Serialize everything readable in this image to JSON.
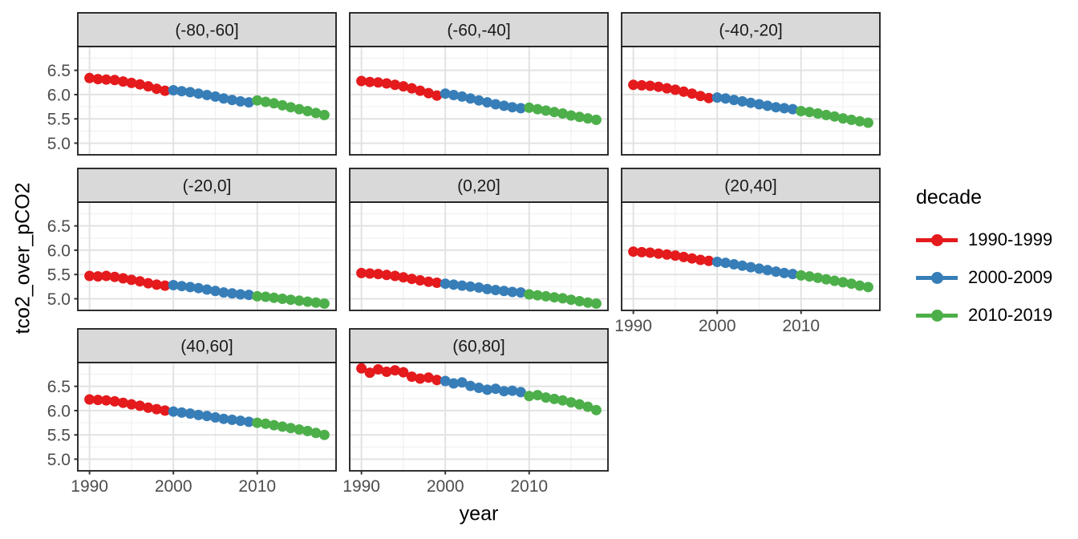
{
  "chart_data": {
    "type": "scatter",
    "title": "",
    "xlabel": "year",
    "ylabel": "tco2_over_pCO2",
    "legend_title": "decade",
    "legend_position": "right",
    "grid": true,
    "facet_ncol": 3,
    "xlim": [
      1988.6,
      2019.4
    ],
    "ylim": [
      4.76,
      6.99
    ],
    "x_ticks": [
      1990,
      2000,
      2010
    ],
    "x_minor_ticks": [
      1995,
      2005,
      2015
    ],
    "y_ticks": [
      5.0,
      5.5,
      6.0,
      6.5
    ],
    "y_minor_ticks": [
      5.25,
      5.75,
      6.25,
      6.75
    ],
    "x": [
      1990,
      1991,
      1992,
      1993,
      1994,
      1995,
      1996,
      1997,
      1998,
      1999,
      2000,
      2001,
      2002,
      2003,
      2004,
      2005,
      2006,
      2007,
      2008,
      2009,
      2010,
      2011,
      2012,
      2013,
      2014,
      2015,
      2016,
      2017,
      2018
    ],
    "series": [
      {
        "name": "1990-1999",
        "color": "#E41A1C",
        "year_start": 1990,
        "year_end": 1999
      },
      {
        "name": "2000-2009",
        "color": "#377EB8",
        "year_start": 2000,
        "year_end": 2009
      },
      {
        "name": "2010-2019",
        "color": "#4DAF4A",
        "year_start": 2010,
        "year_end": 2019
      }
    ],
    "facets": [
      {
        "label": "(-80,-60]",
        "values": [
          6.34,
          6.32,
          6.31,
          6.3,
          6.27,
          6.24,
          6.21,
          6.17,
          6.12,
          6.08,
          6.09,
          6.07,
          6.05,
          6.02,
          5.99,
          5.96,
          5.92,
          5.89,
          5.86,
          5.84,
          5.88,
          5.85,
          5.82,
          5.78,
          5.74,
          5.7,
          5.66,
          5.62,
          5.58
        ]
      },
      {
        "label": "(-60,-40]",
        "values": [
          6.28,
          6.26,
          6.25,
          6.23,
          6.2,
          6.17,
          6.13,
          6.08,
          6.03,
          5.98,
          6.02,
          5.99,
          5.96,
          5.92,
          5.88,
          5.84,
          5.8,
          5.77,
          5.74,
          5.72,
          5.73,
          5.7,
          5.67,
          5.64,
          5.61,
          5.57,
          5.54,
          5.51,
          5.48
        ]
      },
      {
        "label": "(-40,-20]",
        "values": [
          6.2,
          6.19,
          6.18,
          6.16,
          6.13,
          6.1,
          6.06,
          6.02,
          5.97,
          5.93,
          5.94,
          5.92,
          5.89,
          5.86,
          5.83,
          5.8,
          5.77,
          5.74,
          5.72,
          5.7,
          5.66,
          5.64,
          5.61,
          5.58,
          5.55,
          5.51,
          5.48,
          5.45,
          5.42
        ]
      },
      {
        "label": "(-20,0]",
        "values": [
          5.47,
          5.46,
          5.47,
          5.45,
          5.42,
          5.39,
          5.36,
          5.32,
          5.29,
          5.27,
          5.28,
          5.26,
          5.24,
          5.22,
          5.19,
          5.16,
          5.13,
          5.11,
          5.09,
          5.08,
          5.05,
          5.04,
          5.02,
          5.0,
          4.98,
          4.96,
          4.94,
          4.92,
          4.9
        ]
      },
      {
        "label": "(0,20]",
        "values": [
          5.53,
          5.52,
          5.51,
          5.49,
          5.47,
          5.44,
          5.41,
          5.38,
          5.35,
          5.33,
          5.31,
          5.29,
          5.27,
          5.25,
          5.23,
          5.2,
          5.18,
          5.16,
          5.14,
          5.13,
          5.09,
          5.07,
          5.05,
          5.03,
          5.01,
          4.98,
          4.95,
          4.92,
          4.9
        ]
      },
      {
        "label": "(20,40]",
        "values": [
          5.97,
          5.96,
          5.95,
          5.93,
          5.91,
          5.89,
          5.86,
          5.83,
          5.8,
          5.78,
          5.76,
          5.74,
          5.71,
          5.68,
          5.65,
          5.62,
          5.59,
          5.56,
          5.53,
          5.51,
          5.48,
          5.46,
          5.43,
          5.4,
          5.37,
          5.34,
          5.31,
          5.27,
          5.24
        ]
      },
      {
        "label": "(40,60]",
        "values": [
          6.23,
          6.22,
          6.21,
          6.19,
          6.16,
          6.13,
          6.1,
          6.06,
          6.03,
          6.0,
          5.98,
          5.96,
          5.94,
          5.91,
          5.89,
          5.86,
          5.83,
          5.81,
          5.79,
          5.77,
          5.75,
          5.73,
          5.7,
          5.67,
          5.64,
          5.61,
          5.58,
          5.54,
          5.5
        ]
      },
      {
        "label": "(60,80]",
        "values": [
          6.87,
          6.78,
          6.85,
          6.8,
          6.83,
          6.79,
          6.7,
          6.66,
          6.68,
          6.63,
          6.61,
          6.56,
          6.58,
          6.51,
          6.47,
          6.43,
          6.45,
          6.4,
          6.41,
          6.38,
          6.3,
          6.32,
          6.27,
          6.24,
          6.21,
          6.17,
          6.13,
          6.08,
          6.01
        ]
      }
    ]
  },
  "theme": {
    "background": "#FFFFFF",
    "strip_bg": "#D9D9D9",
    "strip_text_color": "#1A1A1A",
    "panel_bg": "#FFFFFF",
    "panel_border": "#1A1A1A",
    "grid_major": "#E2E2E2",
    "grid_minor": "#F0F0F0",
    "tick_color": "#333333",
    "tick_label_color": "#4D4D4D"
  }
}
